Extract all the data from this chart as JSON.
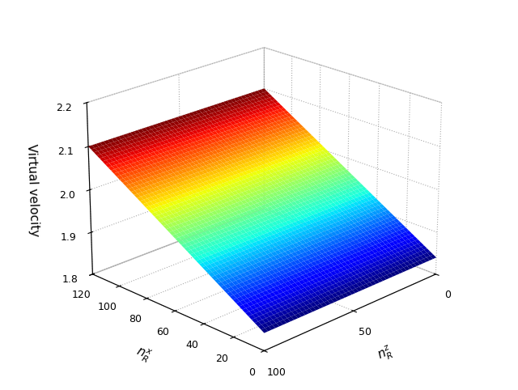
{
  "nx_min": 0,
  "nx_max": 120,
  "nz_min": 0,
  "nz_max": 100,
  "nx_ticks": [
    0,
    20,
    40,
    60,
    80,
    100,
    120
  ],
  "nz_ticks": [
    0,
    50,
    100
  ],
  "vv_min": 1.8,
  "vv_max": 2.2,
  "vv_ticks": [
    1.8,
    1.9,
    2.0,
    2.1,
    2.2
  ],
  "xlabel": "$n_R^x$",
  "ylabel": "$n_R^z$",
  "zlabel": "Virtual velocity",
  "nx_samples": 60,
  "nz_samples": 50,
  "elev": 22,
  "azim": -135,
  "colormap": "jet",
  "background_color": "#ffffff",
  "surf_a": 1.84,
  "surf_b_nx": 0.00217,
  "surf_b_nz": 0.0,
  "surf_b_nxnz": 0.0
}
